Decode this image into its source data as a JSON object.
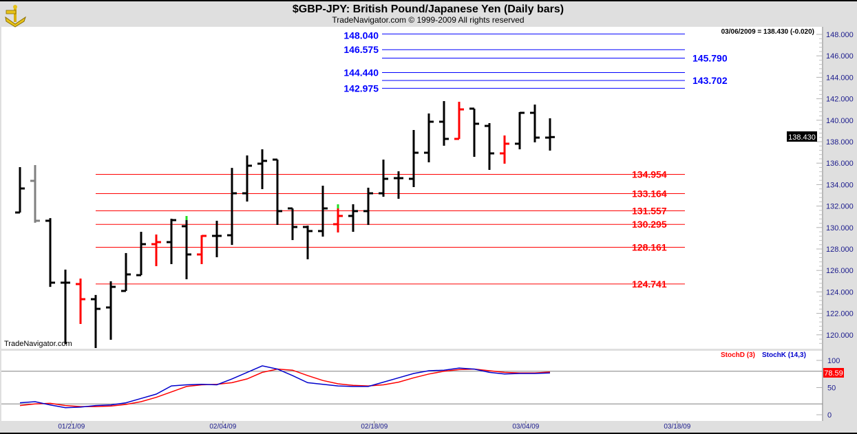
{
  "header": {
    "title": "$GBP-JPY:  British Pound/Japanese Yen  (Daily bars)",
    "subtitle": "TradeNavigator.com © 1999-2009 All rights reserved"
  },
  "watermark": "TradeNavigator.com",
  "last_quote": "03/06/2009 = 138.430 (-0.020)",
  "price_tag": "138.430",
  "chart_data": [
    {
      "type": "ohlc",
      "title": "$GBP-JPY:  British Pound/Japanese Yen  (Daily bars)",
      "ylim": [
        118.7,
        149.3
      ],
      "y_ticks": [
        "148.000",
        "146.000",
        "144.000",
        "142.000",
        "140.000",
        "138.000",
        "136.000",
        "134.000",
        "132.000",
        "130.000",
        "128.000",
        "126.000",
        "124.000",
        "122.000",
        "120.000"
      ],
      "x_labels": [
        {
          "label": "01/21/09",
          "bar_index": 3.4
        },
        {
          "label": "02/04/09",
          "bar_index": 13.4
        },
        {
          "label": "02/18/09",
          "bar_index": 23.4
        },
        {
          "label": "03/04/09",
          "bar_index": 33.4
        },
        {
          "label": "03/18/09",
          "bar_index": 43.4
        }
      ],
      "bars": [
        {
          "o": 131.4,
          "h": 135.63,
          "l": 131.4,
          "c": 133.64,
          "color": "#000000"
        },
        {
          "o": 134.35,
          "h": 135.82,
          "l": 130.44,
          "c": 130.63,
          "color": "#808080"
        },
        {
          "o": 130.63,
          "h": 130.88,
          "l": 124.47,
          "c": 124.86,
          "color": "#000000"
        },
        {
          "o": 124.86,
          "h": 126.08,
          "l": 119.15,
          "c": 124.86,
          "color": "#000000"
        },
        {
          "o": 124.73,
          "h": 125.24,
          "l": 121.01,
          "c": 123.32,
          "color": "#ff0000"
        },
        {
          "o": 123.32,
          "h": 123.71,
          "l": 118.71,
          "c": 122.42,
          "color": "#000000"
        },
        {
          "o": 122.55,
          "h": 124.99,
          "l": 119.54,
          "c": 124.47,
          "color": "#000000"
        },
        {
          "o": 124.09,
          "h": 127.62,
          "l": 124.09,
          "c": 125.63,
          "color": "#000000"
        },
        {
          "o": 125.56,
          "h": 129.6,
          "l": 125.56,
          "c": 128.45,
          "color": "#000000"
        },
        {
          "o": 128.45,
          "h": 129.35,
          "l": 126.4,
          "c": 128.64,
          "color": "#ff0000"
        },
        {
          "o": 128.64,
          "h": 130.82,
          "l": 126.59,
          "c": 130.69,
          "color": "#000000"
        },
        {
          "o": 130.12,
          "h": 130.69,
          "l": 125.18,
          "c": 127.49,
          "color": "#000000",
          "green_top": true
        },
        {
          "o": 127.49,
          "h": 129.28,
          "l": 126.59,
          "c": 129.22,
          "color": "#ff0000"
        },
        {
          "o": 129.22,
          "h": 130.63,
          "l": 127.23,
          "c": 129.22,
          "color": "#000000"
        },
        {
          "o": 129.28,
          "h": 135.56,
          "l": 128.38,
          "c": 133.19,
          "color": "#000000"
        },
        {
          "o": 133.19,
          "h": 136.72,
          "l": 132.42,
          "c": 135.76,
          "color": "#000000"
        },
        {
          "o": 135.95,
          "h": 137.29,
          "l": 133.58,
          "c": 136.21,
          "color": "#000000"
        },
        {
          "o": 136.33,
          "h": 136.33,
          "l": 130.24,
          "c": 131.53,
          "color": "#000000"
        },
        {
          "o": 131.78,
          "h": 131.78,
          "l": 128.83,
          "c": 130.05,
          "color": "#000000"
        },
        {
          "o": 130.05,
          "h": 130.18,
          "l": 127.04,
          "c": 129.67,
          "color": "#000000"
        },
        {
          "o": 129.67,
          "h": 133.9,
          "l": 129.15,
          "c": 131.78,
          "color": "#000000"
        },
        {
          "o": 130.31,
          "h": 131.78,
          "l": 129.54,
          "c": 131.08,
          "color": "#ff0000",
          "green_top": true
        },
        {
          "o": 131.08,
          "h": 132.17,
          "l": 129.6,
          "c": 131.53,
          "color": "#000000"
        },
        {
          "o": 131.53,
          "h": 133.71,
          "l": 130.24,
          "c": 133.19,
          "color": "#000000"
        },
        {
          "o": 133.19,
          "h": 136.33,
          "l": 132.87,
          "c": 134.54,
          "color": "#000000"
        },
        {
          "o": 134.6,
          "h": 135.24,
          "l": 132.68,
          "c": 134.6,
          "color": "#000000"
        },
        {
          "o": 134.54,
          "h": 139.09,
          "l": 133.77,
          "c": 136.97,
          "color": "#000000"
        },
        {
          "o": 136.97,
          "h": 140.63,
          "l": 136.08,
          "c": 139.86,
          "color": "#000000"
        },
        {
          "o": 139.86,
          "h": 141.78,
          "l": 137.62,
          "c": 138.26,
          "color": "#000000"
        },
        {
          "o": 138.26,
          "h": 141.72,
          "l": 138.26,
          "c": 141.01,
          "color": "#ff0000"
        },
        {
          "o": 141.08,
          "h": 141.08,
          "l": 136.59,
          "c": 139.67,
          "color": "#000000"
        },
        {
          "o": 139.47,
          "h": 139.73,
          "l": 135.37,
          "c": 136.91,
          "color": "#000000"
        },
        {
          "o": 136.91,
          "h": 138.58,
          "l": 135.95,
          "c": 137.81,
          "color": "#ff0000"
        },
        {
          "o": 137.81,
          "h": 140.76,
          "l": 137.29,
          "c": 140.69,
          "color": "#000000"
        },
        {
          "o": 140.69,
          "h": 141.46,
          "l": 137.94,
          "c": 138.38,
          "color": "#000000"
        },
        {
          "o": 138.38,
          "h": 140.18,
          "l": 137.17,
          "c": 138.43,
          "color": "#000000"
        }
      ],
      "levels_blue": [
        {
          "value": 148.04,
          "label": "148.040",
          "side": "left"
        },
        {
          "value": 146.575,
          "label": "146.575",
          "side": "left"
        },
        {
          "value": 145.79,
          "label": "145.790",
          "side": "right"
        },
        {
          "value": 144.44,
          "label": "144.440",
          "side": "left"
        },
        {
          "value": 143.702,
          "label": "143.702",
          "side": "right"
        },
        {
          "value": 142.975,
          "label": "142.975",
          "side": "left"
        }
      ],
      "levels_red": [
        {
          "value": 134.954,
          "label": "134.954"
        },
        {
          "value": 133.164,
          "label": "133.164"
        },
        {
          "value": 131.557,
          "label": "131.557"
        },
        {
          "value": 130.295,
          "label": "130.295"
        },
        {
          "value": 128.161,
          "label": "128.161"
        },
        {
          "value": 124.741,
          "label": "124.741"
        }
      ]
    },
    {
      "type": "line",
      "title": "Stochastic",
      "ylim": [
        0,
        100
      ],
      "y_ticks": [
        "100",
        "50",
        "0"
      ],
      "reference_lines": [
        80,
        20
      ],
      "last_value_label": "78.59",
      "series": [
        {
          "name": "StochD (3)",
          "color": "#ff0000",
          "values": [
            17,
            20,
            21,
            17,
            15,
            15,
            16,
            19,
            24,
            32,
            42,
            52,
            55,
            56,
            59,
            66,
            78,
            84,
            82,
            72,
            63,
            57,
            54,
            53,
            55,
            60,
            68,
            75,
            80,
            83,
            84,
            81,
            78,
            77,
            77,
            78.59
          ]
        },
        {
          "name": "StochK (14,3)",
          "color": "#0000cc",
          "values": [
            22,
            24,
            18,
            13,
            14,
            17,
            18,
            22,
            30,
            38,
            53,
            55,
            56,
            55,
            66,
            78,
            90,
            84,
            72,
            59,
            56,
            53,
            52,
            52,
            60,
            68,
            76,
            81,
            82,
            86,
            84,
            78,
            75,
            76,
            76,
            77
          ]
        }
      ]
    }
  ]
}
